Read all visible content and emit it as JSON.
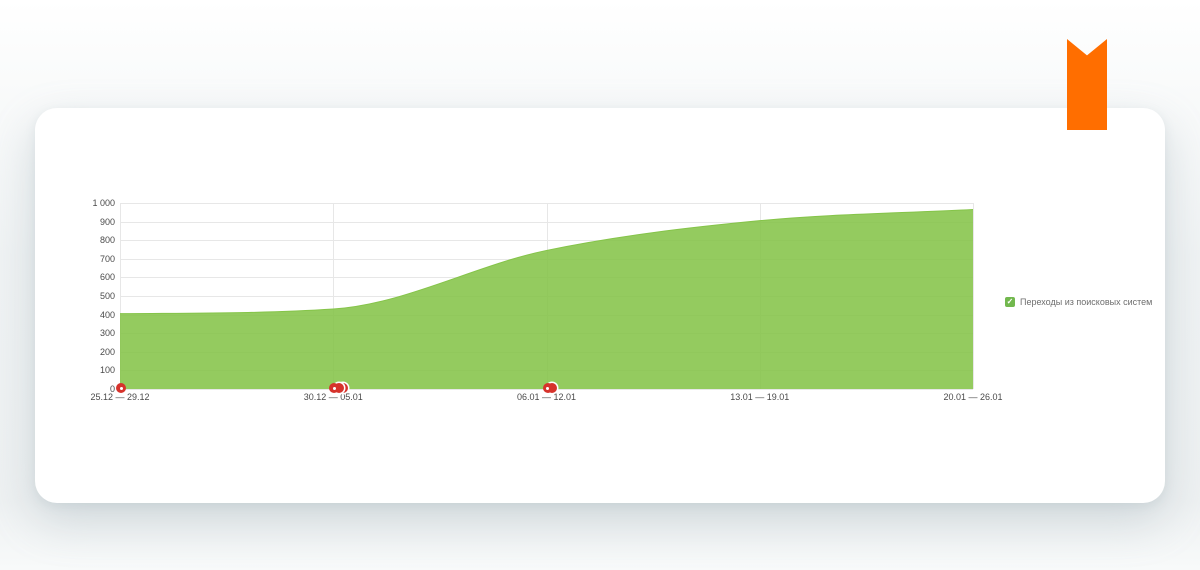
{
  "colors": {
    "card_background": "#ffffff",
    "ribbon_orange": "#ff6e00",
    "area_green": "#85c449",
    "grid_line": "#e7e7e7",
    "axis_text": "#4a4a4a",
    "legend_text": "#6e6e6e",
    "legend_checkbox_green": "#72b84e",
    "marker_red": "#d6332c"
  },
  "icons": {
    "legend_check": "✓"
  },
  "chart_data": {
    "type": "area",
    "title": "",
    "xlabel": "",
    "ylabel": "",
    "categories": [
      "25.12 — 29.12",
      "30.12 — 05.01",
      "06.01 — 12.01",
      "13.01 — 19.01",
      "20.01 — 26.01"
    ],
    "series": [
      {
        "name": "Переходы из поисковых систем",
        "values": [
          405,
          430,
          745,
          905,
          965
        ],
        "color": "#85c449"
      }
    ],
    "ylim": [
      0,
      1000
    ],
    "ytick_step": 100,
    "ytick_labels_top_to_bottom": [
      "1 000",
      "900",
      "800",
      "700",
      "600",
      "500",
      "400",
      "300",
      "200",
      "100",
      "0"
    ],
    "grid": true,
    "legend_position": "right",
    "annotation_markers": [
      {
        "category_index": 0,
        "count": 1
      },
      {
        "category_index": 1,
        "count": 3
      },
      {
        "category_index": 2,
        "count": 2
      }
    ]
  }
}
